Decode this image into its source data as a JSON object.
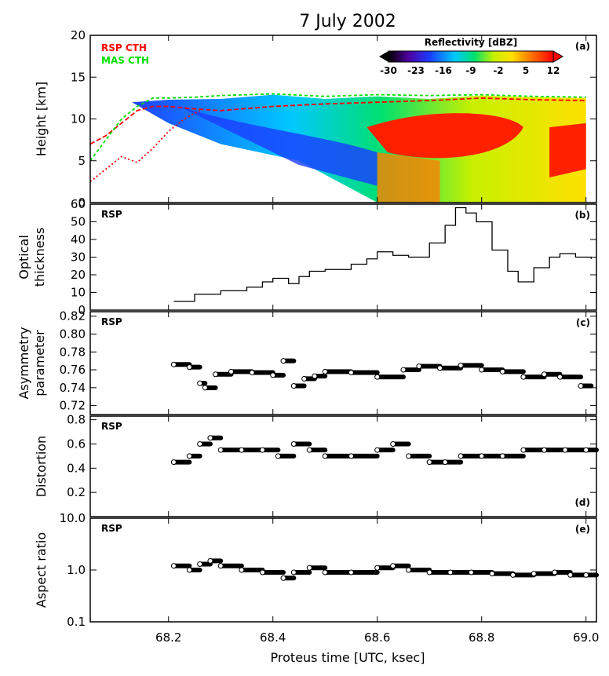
{
  "title": "7 July 2002",
  "xlabel": "Proteus time [UTC, ksec]",
  "x_ticks": [
    "68.2",
    "68.4",
    "68.6",
    "68.8",
    "69.0"
  ],
  "colors": {
    "rsp_cth": "#ff0000",
    "mas_cth": "#00e000",
    "frame": "#000000"
  },
  "chart_data": [
    {
      "type": "heatmap",
      "panel_label": "(a)",
      "ylabel": "Height [km]",
      "ylim": [
        0,
        20
      ],
      "xlim": [
        68.05,
        69.02
      ],
      "y_ticks": [
        "0",
        "5",
        "10",
        "15",
        "20"
      ],
      "legend": [
        "RSP CTH",
        "MAS CTH"
      ],
      "colorbar": {
        "title": "Reflectivity [dBZ]",
        "ticks": [
          "-30",
          "-23",
          "-16",
          "-9",
          "-2",
          "5",
          "12"
        ],
        "range": [
          -30,
          12
        ]
      },
      "cloud_top": {
        "x": [
          68.1,
          68.2,
          68.3,
          68.4,
          68.5,
          68.6,
          68.7,
          68.8,
          68.9,
          69.0
        ],
        "y": [
          12.5,
          12.3,
          12.4,
          12.9,
          12.4,
          12.7,
          12.4,
          12.8,
          12.6,
          12.5
        ]
      },
      "rsp_cth": {
        "x": [
          68.05,
          68.08,
          68.11,
          68.14,
          68.17,
          68.2,
          68.25,
          68.3,
          68.4,
          68.5,
          68.6,
          68.7,
          68.8,
          68.9,
          69.0
        ],
        "y": [
          7.0,
          8.0,
          9.5,
          11.0,
          11.5,
          11.5,
          11.2,
          11.0,
          11.5,
          11.8,
          12.0,
          12.2,
          12.5,
          12.3,
          12.2
        ]
      },
      "rsp_cth_low": {
        "x": [
          68.05,
          68.08,
          68.11,
          68.14,
          68.17,
          68.2,
          68.23,
          68.26
        ],
        "y": [
          2.5,
          4.0,
          5.5,
          4.8,
          6.5,
          8.5,
          10.0,
          11.0
        ]
      },
      "mas_cth": {
        "x": [
          68.05,
          68.08,
          68.11,
          68.14,
          68.17,
          68.2,
          68.25,
          68.3,
          68.4,
          68.5,
          68.6,
          68.7,
          68.8,
          68.9,
          69.0
        ],
        "y": [
          5.0,
          7.5,
          10.0,
          11.5,
          12.5,
          12.5,
          12.6,
          12.8,
          13.0,
          12.7,
          12.9,
          12.8,
          12.9,
          12.7,
          12.6
        ]
      }
    },
    {
      "type": "line",
      "panel_label": "(b)",
      "series_label": "RSP",
      "ylabel": "Optical thickness",
      "ylim": [
        0,
        60
      ],
      "xlim": [
        68.05,
        69.02
      ],
      "y_ticks": [
        "0",
        "10",
        "20",
        "30",
        "40",
        "50",
        "60"
      ],
      "x": [
        68.21,
        68.25,
        68.3,
        68.35,
        68.38,
        68.4,
        68.43,
        68.45,
        68.47,
        68.5,
        68.55,
        68.58,
        68.6,
        68.63,
        68.66,
        68.7,
        68.73,
        68.75,
        68.77,
        68.79,
        68.82,
        68.85,
        68.87,
        68.9,
        68.93,
        68.95,
        68.98,
        69.01
      ],
      "y": [
        5,
        9,
        11,
        13,
        16,
        18,
        15,
        19,
        22,
        23,
        26,
        29,
        33,
        31,
        30,
        38,
        48,
        58,
        55,
        50,
        34,
        22,
        16,
        24,
        30,
        32,
        30,
        29
      ]
    },
    {
      "type": "scatter",
      "panel_label": "(c)",
      "series_label": "RSP",
      "ylabel": "Asymmetry parameter",
      "ylim": [
        0.71,
        0.825
      ],
      "xlim": [
        68.05,
        69.02
      ],
      "y_ticks": [
        "0.72",
        "0.74",
        "0.76",
        "0.78",
        "0.80",
        "0.82"
      ],
      "x": [
        68.21,
        68.24,
        68.26,
        68.27,
        68.29,
        68.32,
        68.36,
        68.4,
        68.42,
        68.44,
        68.46,
        68.48,
        68.5,
        68.55,
        68.6,
        68.65,
        68.68,
        68.72,
        68.76,
        68.8,
        68.84,
        68.88,
        68.92,
        68.95,
        68.99
      ],
      "y": [
        0.766,
        0.763,
        0.745,
        0.74,
        0.755,
        0.758,
        0.757,
        0.754,
        0.77,
        0.742,
        0.75,
        0.753,
        0.758,
        0.757,
        0.752,
        0.76,
        0.764,
        0.762,
        0.765,
        0.76,
        0.758,
        0.752,
        0.755,
        0.752,
        0.742
      ]
    },
    {
      "type": "scatter",
      "panel_label": "(d)",
      "series_label": "RSP",
      "ylabel": "Distortion",
      "ylim": [
        0,
        0.83
      ],
      "xlim": [
        68.05,
        69.02
      ],
      "y_ticks": [
        "0.2",
        "0.4",
        "0.6",
        "0.8"
      ],
      "x": [
        68.21,
        68.24,
        68.26,
        68.28,
        68.3,
        68.34,
        68.38,
        68.41,
        68.44,
        68.47,
        68.5,
        68.55,
        68.6,
        68.63,
        68.66,
        68.7,
        68.73,
        68.76,
        68.8,
        68.84,
        68.88,
        68.92,
        68.96,
        69.0
      ],
      "y": [
        0.45,
        0.5,
        0.6,
        0.65,
        0.55,
        0.55,
        0.55,
        0.5,
        0.6,
        0.55,
        0.5,
        0.5,
        0.55,
        0.6,
        0.5,
        0.45,
        0.45,
        0.5,
        0.5,
        0.5,
        0.55,
        0.55,
        0.55,
        0.55
      ]
    },
    {
      "type": "scatter",
      "panel_label": "(e)",
      "series_label": "RSP",
      "ylabel": "Aspect ratio",
      "yscale": "log",
      "ylim": [
        0.1,
        10
      ],
      "xlim": [
        68.05,
        69.02
      ],
      "y_ticks": [
        "0.1",
        "1.0",
        "10.0"
      ],
      "x": [
        68.21,
        68.24,
        68.26,
        68.28,
        68.3,
        68.34,
        68.38,
        68.42,
        68.44,
        68.47,
        68.5,
        68.55,
        68.6,
        68.63,
        68.66,
        68.7,
        68.74,
        68.78,
        68.82,
        68.86,
        68.9,
        68.94,
        68.97,
        69.0
      ],
      "y": [
        1.2,
        1.0,
        1.3,
        1.5,
        1.2,
        1.0,
        0.9,
        0.7,
        0.9,
        1.1,
        0.9,
        0.9,
        1.1,
        1.2,
        1.0,
        0.9,
        0.9,
        0.9,
        0.85,
        0.8,
        0.85,
        0.9,
        0.8,
        0.8
      ]
    }
  ]
}
